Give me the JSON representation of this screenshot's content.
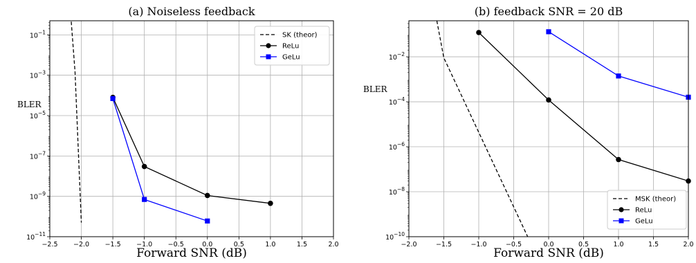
{
  "chart_data": [
    {
      "type": "line",
      "title": "(a) Noiseless feedback",
      "xlabel": "Forward SNR (dB)",
      "ylabel": "BLER",
      "xlim": [
        -2.5,
        2.0
      ],
      "ylim": [
        1e-11,
        0.5
      ],
      "yscale": "log",
      "grid": true,
      "legend_position": "top-right",
      "xticks": [
        "−2.5",
        "−2.0",
        "−1.5",
        "−1.0",
        "−0.5",
        "0.0",
        "0.5",
        "1.0",
        "1.5",
        "2.0"
      ],
      "xtick_values": [
        -2.5,
        -2.0,
        -1.5,
        -1.0,
        -0.5,
        0.0,
        0.5,
        1.0,
        1.5,
        2.0
      ],
      "yticks": [
        {
          "value": 1e-11,
          "base": "10",
          "exp": "−11"
        },
        {
          "value": 1e-09,
          "base": "10",
          "exp": "−9"
        },
        {
          "value": 1e-07,
          "base": "10",
          "exp": "−7"
        },
        {
          "value": 1e-05,
          "base": "10",
          "exp": "−5"
        },
        {
          "value": 0.001,
          "base": "10",
          "exp": "−3"
        },
        {
          "value": 0.1,
          "base": "10",
          "exp": "−1"
        }
      ],
      "series": [
        {
          "name": "SK (theor)",
          "style": "dashed",
          "marker": "none",
          "color": "#000000",
          "x": [
            -2.16,
            -2.1,
            -2.0
          ],
          "y": [
            0.45,
            0.0015,
            5e-11
          ]
        },
        {
          "name": "ReLu",
          "style": "solid",
          "marker": "circle",
          "color": "#000000",
          "x": [
            -1.5,
            -1.0,
            0.0,
            1.0
          ],
          "y": [
            8e-05,
            3e-08,
            1.1e-09,
            4.5e-10
          ]
        },
        {
          "name": "GeLu",
          "style": "solid",
          "marker": "square",
          "color": "#0000ff",
          "x": [
            -1.5,
            -1.0,
            0.0
          ],
          "y": [
            7e-05,
            7e-10,
            6e-11
          ]
        }
      ]
    },
    {
      "type": "line",
      "title": "(b) feedback SNR = 20 dB",
      "xlabel": "Forward SNR (dB)",
      "ylabel": "BLER",
      "xlim": [
        -2.0,
        2.0
      ],
      "ylim": [
        1e-10,
        0.4
      ],
      "yscale": "log",
      "grid": true,
      "legend_position": "bottom-right",
      "xticks": [
        "−2.0",
        "−1.5",
        "−1.0",
        "−0.5",
        "0.0",
        "0.5",
        "1.0",
        "1.5",
        "2.0"
      ],
      "xtick_values": [
        -2.0,
        -1.5,
        -1.0,
        -0.5,
        0.0,
        0.5,
        1.0,
        1.5,
        2.0
      ],
      "yticks": [
        {
          "value": 1e-10,
          "base": "10",
          "exp": "−10"
        },
        {
          "value": 1e-08,
          "base": "10",
          "exp": "−8"
        },
        {
          "value": 1e-06,
          "base": "10",
          "exp": "−6"
        },
        {
          "value": 0.0001,
          "base": "10",
          "exp": "−4"
        },
        {
          "value": 0.01,
          "base": "10",
          "exp": "−2"
        }
      ],
      "series": [
        {
          "name": "MSK (theor)",
          "style": "dashed",
          "marker": "none",
          "color": "#000000",
          "x": [
            -1.6,
            -1.5,
            -0.3
          ],
          "y": [
            0.4,
            0.009,
            1e-10
          ]
        },
        {
          "name": "ReLu",
          "style": "solid",
          "marker": "circle",
          "color": "#000000",
          "x": [
            -1.0,
            0.0,
            1.0,
            2.0
          ],
          "y": [
            0.12,
            0.00012,
            2.7e-07,
            3e-08
          ]
        },
        {
          "name": "GeLu",
          "style": "solid",
          "marker": "square",
          "color": "#0000ff",
          "x": [
            0.0,
            1.0,
            2.0
          ],
          "y": [
            0.13,
            0.0014,
            0.00016
          ]
        }
      ]
    }
  ]
}
